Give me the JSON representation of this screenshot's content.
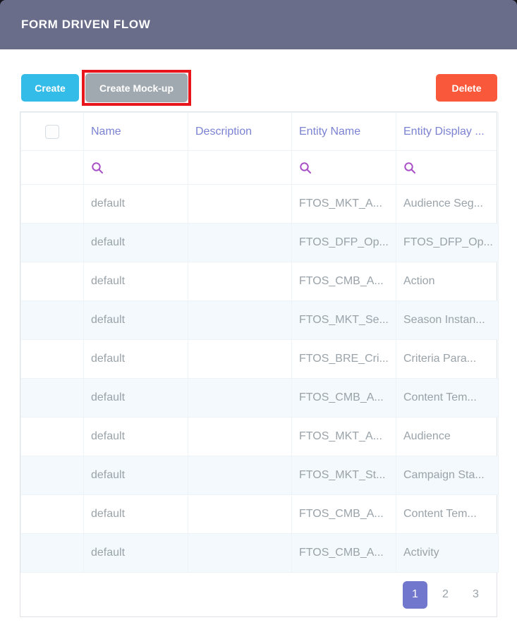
{
  "header": {
    "title": "FORM DRIVEN FLOW"
  },
  "toolbar": {
    "create_label": "Create",
    "create_mockup_label": "Create Mock-up",
    "delete_label": "Delete"
  },
  "table": {
    "columns": [
      "Name",
      "Description",
      "Entity Name",
      "Entity Display ..."
    ],
    "search_row": {
      "search_icon": "magnifier",
      "searchable_columns": [
        "Name",
        "Entity Name",
        "Entity Display ..."
      ]
    },
    "rows": [
      {
        "name": "default",
        "description": "",
        "entity_name": "FTOS_MKT_A...",
        "entity_display": "Audience Seg..."
      },
      {
        "name": "default",
        "description": "",
        "entity_name": "FTOS_DFP_Op...",
        "entity_display": "FTOS_DFP_Op..."
      },
      {
        "name": "default",
        "description": "",
        "entity_name": "FTOS_CMB_A...",
        "entity_display": "Action"
      },
      {
        "name": "default",
        "description": "",
        "entity_name": "FTOS_MKT_Se...",
        "entity_display": "Season Instan..."
      },
      {
        "name": "default",
        "description": "",
        "entity_name": "FTOS_BRE_Cri...",
        "entity_display": "Criteria Para..."
      },
      {
        "name": "default",
        "description": "",
        "entity_name": "FTOS_CMB_A...",
        "entity_display": "Content Tem..."
      },
      {
        "name": "default",
        "description": "",
        "entity_name": "FTOS_MKT_A...",
        "entity_display": "Audience"
      },
      {
        "name": "default",
        "description": "",
        "entity_name": "FTOS_MKT_St...",
        "entity_display": "Campaign Sta..."
      },
      {
        "name": "default",
        "description": "",
        "entity_name": "FTOS_CMB_A...",
        "entity_display": "Content Tem..."
      },
      {
        "name": "default",
        "description": "",
        "entity_name": "FTOS_CMB_A...",
        "entity_display": "Activity"
      }
    ]
  },
  "pagination": {
    "pages": [
      "1",
      "2",
      "3"
    ],
    "active": "1"
  },
  "colors": {
    "header_bg": "#696d8a",
    "create_btn": "#34bce8",
    "mockup_btn": "#a0a9af",
    "annotation_red": "#e8151d",
    "delete_btn": "#f9583a",
    "column_header_text": "#7b82d2",
    "search_icon": "#a84fc7",
    "cell_text": "#9aa3a9",
    "zebra_row": "#f3f9fc",
    "active_page_bg": "#7177cd"
  }
}
